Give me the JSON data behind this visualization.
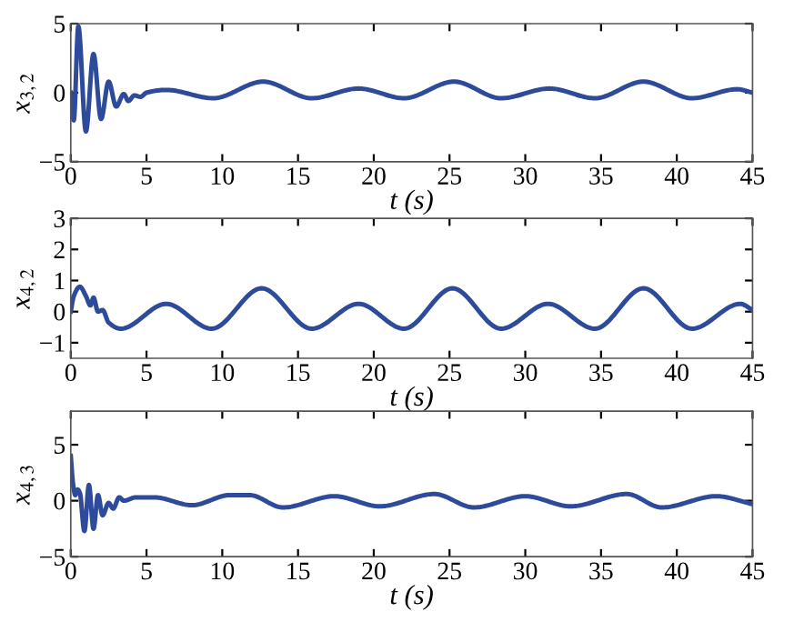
{
  "chart_data": [
    {
      "type": "line",
      "xlabel": "t (s)",
      "ylabel": "x$_{3,2}$",
      "xlim": [
        0,
        45
      ],
      "xticks": [
        0,
        5,
        10,
        15,
        20,
        25,
        30,
        35,
        40,
        45
      ],
      "ylim": [
        -5,
        5
      ],
      "yticks": [
        -5,
        0,
        5
      ],
      "grid": false,
      "legend": false,
      "series": [
        {
          "color": "#2e4a9a",
          "x": [
            0,
            0.2,
            0.5,
            1.0,
            1.5,
            2.0,
            2.5,
            3.0,
            3.5,
            3.8,
            4.2,
            4.6,
            5.0,
            6.3,
            9.4,
            12.7,
            15.9,
            19.0,
            22.0,
            25.3,
            28.4,
            31.6,
            34.6,
            37.8,
            41.0,
            44.0,
            45.0
          ],
          "values": [
            0,
            -2.0,
            4.8,
            -2.8,
            2.8,
            -1.9,
            0.8,
            -1.0,
            -0.1,
            -0.6,
            -0.2,
            -0.3,
            0,
            0.2,
            -0.4,
            0.8,
            -0.4,
            0.3,
            -0.4,
            0.8,
            -0.4,
            0.3,
            -0.4,
            0.8,
            -0.4,
            0.25,
            0
          ]
        }
      ]
    },
    {
      "type": "line",
      "xlabel": "t (s)",
      "ylabel": "x$_{4,2}$",
      "xlim": [
        0,
        45
      ],
      "xticks": [
        0,
        5,
        10,
        15,
        20,
        25,
        30,
        35,
        40,
        45
      ],
      "ylim": [
        -1.5,
        3
      ],
      "yticks": [
        -1,
        0,
        1,
        2,
        3
      ],
      "grid": false,
      "legend": false,
      "series": [
        {
          "color": "#2e4a9a",
          "x": [
            0,
            0.2,
            0.6,
            1.0,
            1.3,
            1.5,
            1.8,
            2.1,
            2.5,
            3.3,
            6.3,
            9.3,
            12.6,
            15.9,
            19.0,
            22.0,
            25.2,
            28.4,
            31.5,
            34.6,
            37.8,
            41.0,
            44.2,
            45.0
          ],
          "values": [
            0,
            0.5,
            0.8,
            0.5,
            0.2,
            0.45,
            0.0,
            0.05,
            -0.35,
            -0.55,
            0.25,
            -0.55,
            0.75,
            -0.55,
            0.25,
            -0.55,
            0.75,
            -0.55,
            0.25,
            -0.55,
            0.75,
            -0.55,
            0.25,
            0.05
          ]
        }
      ]
    },
    {
      "type": "line",
      "xlabel": "t (s)",
      "ylabel": "x$_{4,3}$",
      "xlim": [
        0,
        45
      ],
      "xticks": [
        0,
        5,
        10,
        15,
        20,
        25,
        30,
        35,
        40,
        45
      ],
      "ylim": [
        -5,
        8
      ],
      "yticks": [
        -5,
        0,
        5
      ],
      "grid": false,
      "legend": false,
      "series": [
        {
          "color": "#2e4a9a",
          "x": [
            0,
            0.15,
            0.3,
            0.45,
            0.6,
            0.9,
            1.2,
            1.5,
            1.8,
            2.1,
            2.5,
            2.8,
            3.2,
            3.5,
            4.3,
            5.5,
            8.0,
            10.5,
            11.8,
            14.0,
            17.4,
            20.4,
            24.0,
            26.6,
            30.0,
            33.0,
            36.7,
            39.0,
            42.6,
            45.0
          ],
          "values": [
            4.0,
            1.5,
            0.5,
            1.0,
            0.7,
            -2.7,
            1.4,
            -2.5,
            0.5,
            -1.3,
            -0.2,
            -0.7,
            0.3,
            0,
            0.3,
            0.3,
            -0.4,
            0.5,
            0.5,
            -0.6,
            0.4,
            -0.5,
            0.6,
            -0.6,
            0.4,
            -0.5,
            0.6,
            -0.6,
            0.4,
            -0.3
          ]
        }
      ]
    }
  ]
}
